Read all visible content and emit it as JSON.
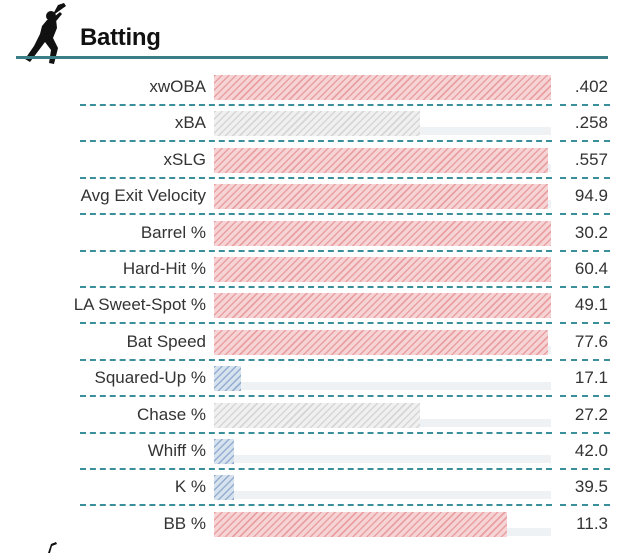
{
  "section": {
    "title": "Batting",
    "accent_color": "#3a7f86",
    "icon": "batter-icon"
  },
  "legend_colors": {
    "high": "#e9a0a3",
    "neutral": "#d6d6d6",
    "low": "#94aed0"
  },
  "metrics": [
    {
      "label": "xwOBA",
      "value": ".402",
      "fill": 1.0,
      "level": "red"
    },
    {
      "label": "xBA",
      "value": ".258",
      "fill": 0.61,
      "level": "gray"
    },
    {
      "label": "xSLG",
      "value": ".557",
      "fill": 0.99,
      "level": "red"
    },
    {
      "label": "Avg Exit Velocity",
      "value": "94.9",
      "fill": 0.99,
      "level": "red"
    },
    {
      "label": "Barrel %",
      "value": "30.2",
      "fill": 1.0,
      "level": "red"
    },
    {
      "label": "Hard-Hit %",
      "value": "60.4",
      "fill": 1.0,
      "level": "red"
    },
    {
      "label": "LA Sweet-Spot %",
      "value": "49.1",
      "fill": 1.0,
      "level": "red"
    },
    {
      "label": "Bat Speed",
      "value": "77.6",
      "fill": 0.99,
      "level": "red"
    },
    {
      "label": "Squared-Up %",
      "value": "17.1",
      "fill": 0.08,
      "level": "blue"
    },
    {
      "label": "Chase %",
      "value": "27.2",
      "fill": 0.61,
      "level": "gray"
    },
    {
      "label": "Whiff %",
      "value": "42.0",
      "fill": 0.06,
      "level": "blue"
    },
    {
      "label": "K %",
      "value": "39.5",
      "fill": 0.06,
      "level": "blue"
    },
    {
      "label": "BB %",
      "value": "11.3",
      "fill": 0.87,
      "level": "red"
    }
  ]
}
